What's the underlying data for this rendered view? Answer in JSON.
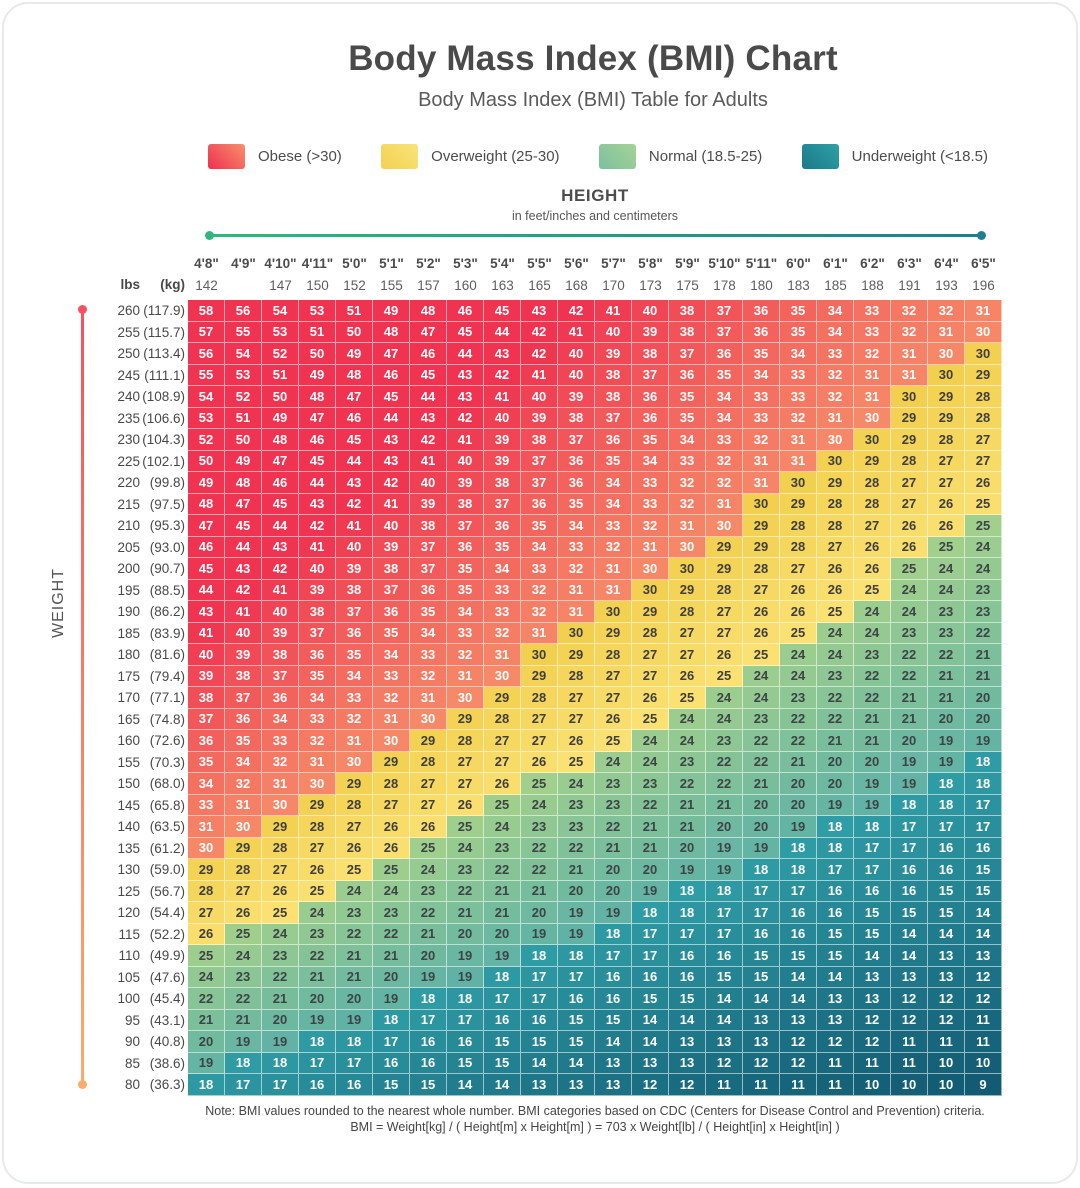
{
  "title": "Body Mass Index (BMI) Chart",
  "subtitle": "Body Mass Index (BMI) Table for Adults",
  "legend": {
    "items": [
      {
        "label": "Obese (>30)",
        "swatch_from": "#ee2f50",
        "swatch_to": "#f8906c"
      },
      {
        "label": "Overweight (25-30)",
        "swatch_from": "#f3d052",
        "swatch_to": "#fae47a"
      },
      {
        "label": "Normal (18.5-25)",
        "swatch_from": "#7dbfa0",
        "swatch_to": "#a6d396"
      },
      {
        "label": "Underweight (<18.5)",
        "swatch_from": "#1a7a89",
        "swatch_to": "#2fa0a6"
      }
    ]
  },
  "height_axis": {
    "title": "HEIGHT",
    "subtitle": "in feet/inches and centimeters",
    "line_from": "#2db97d",
    "line_to": "#1e7f8e"
  },
  "weight_axis": {
    "title": "WEIGHT",
    "line_from": "#f8505f",
    "line_to": "#f9ac6e"
  },
  "units": {
    "pounds": "lbs",
    "kilograms": "(kg)"
  },
  "footer": {
    "line1": "Note: BMI values rounded to the nearest whole number. BMI categories based on CDC (Centers for Disease Control and Prevention) criteria.",
    "line2": "BMI = Weight[kg] / ( Height[m] x Height[m] ) = 703 x Weight[lb] / ( Height[in] x Height[in] )"
  },
  "chart_data": {
    "type": "heatmap",
    "title": "Body Mass Index (BMI) Chart",
    "x_axis": {
      "label": "HEIGHT",
      "columns_feet_inches": [
        "4'8\"",
        "4'9\"",
        "4'10\"",
        "4'11\"",
        "5'0\"",
        "5'1\"",
        "5'2\"",
        "5'3\"",
        "5'4\"",
        "5'5\"",
        "5'6\"",
        "5'7\"",
        "5'8\"",
        "5'9\"",
        "5'10\"",
        "5'11\"",
        "6'0\"",
        "6'1\"",
        "6'2\"",
        "6'3\"",
        "6'4\"",
        "6'5\""
      ],
      "columns_cm": [
        "142",
        "",
        "147",
        "150",
        "152",
        "155",
        "157",
        "160",
        "163",
        "165",
        "168",
        "170",
        "173",
        "175",
        "178",
        "180",
        "183",
        "185",
        "188",
        "191",
        "193",
        "196"
      ],
      "heights_inches": [
        56,
        57,
        58,
        59,
        60,
        61,
        62,
        63,
        64,
        65,
        66,
        67,
        68,
        69,
        70,
        71,
        72,
        73,
        74,
        75,
        76,
        77
      ]
    },
    "y_axis": {
      "label": "WEIGHT",
      "rows_lbs": [
        260,
        255,
        250,
        245,
        240,
        235,
        230,
        225,
        220,
        215,
        210,
        205,
        200,
        195,
        190,
        185,
        180,
        175,
        170,
        165,
        160,
        155,
        150,
        145,
        140,
        135,
        130,
        125,
        120,
        115,
        110,
        105,
        100,
        95,
        90,
        85,
        80
      ],
      "rows_kg": [
        "(117.9)",
        "(115.7)",
        "(113.4)",
        "(111.1)",
        "(108.9)",
        "(106.6)",
        "(104.3)",
        "(102.1)",
        "(99.8)",
        "(97.5)",
        "(95.3)",
        "(93.0)",
        "(90.7)",
        "(88.5)",
        "(86.2)",
        "(83.9)",
        "(81.6)",
        "(79.4)",
        "(77.1)",
        "(74.8)",
        "(72.6)",
        "(70.3)",
        "(68.0)",
        "(65.8)",
        "(63.5)",
        "(61.2)",
        "(59.0)",
        "(56.7)",
        "(54.4)",
        "(52.2)",
        "(49.9)",
        "(47.6)",
        "(45.4)",
        "(43.1)",
        "(40.8)",
        "(38.6)",
        "(36.3)"
      ]
    },
    "bmi_values": [
      [
        58,
        56,
        54,
        53,
        51,
        49,
        48,
        46,
        45,
        43,
        42,
        41,
        40,
        38,
        37,
        36,
        35,
        34,
        33,
        32,
        32,
        31
      ],
      [
        57,
        55,
        53,
        51,
        50,
        48,
        47,
        45,
        44,
        42,
        41,
        40,
        39,
        38,
        37,
        36,
        35,
        34,
        33,
        32,
        31,
        30
      ],
      [
        56,
        54,
        52,
        50,
        49,
        47,
        46,
        44,
        43,
        42,
        40,
        39,
        38,
        37,
        36,
        35,
        34,
        33,
        32,
        31,
        30,
        30
      ],
      [
        55,
        53,
        51,
        49,
        48,
        46,
        45,
        43,
        42,
        41,
        40,
        38,
        37,
        36,
        35,
        34,
        33,
        32,
        31,
        31,
        30,
        29
      ],
      [
        54,
        52,
        50,
        48,
        47,
        45,
        44,
        43,
        41,
        40,
        39,
        38,
        36,
        35,
        34,
        33,
        33,
        32,
        31,
        30,
        29,
        28
      ],
      [
        53,
        51,
        49,
        47,
        46,
        44,
        43,
        42,
        40,
        39,
        38,
        37,
        36,
        35,
        34,
        33,
        32,
        31,
        30,
        29,
        29,
        28
      ],
      [
        52,
        50,
        48,
        46,
        45,
        43,
        42,
        41,
        39,
        38,
        37,
        36,
        35,
        34,
        33,
        32,
        31,
        30,
        30,
        29,
        28,
        27
      ],
      [
        50,
        49,
        47,
        45,
        44,
        43,
        41,
        40,
        39,
        37,
        36,
        35,
        34,
        33,
        32,
        31,
        31,
        30,
        29,
        28,
        27,
        27
      ],
      [
        49,
        48,
        46,
        44,
        43,
        42,
        40,
        39,
        38,
        37,
        36,
        34,
        33,
        32,
        32,
        31,
        30,
        29,
        28,
        27,
        27,
        26
      ],
      [
        48,
        47,
        45,
        43,
        42,
        41,
        39,
        38,
        37,
        36,
        35,
        34,
        33,
        32,
        31,
        30,
        29,
        28,
        28,
        27,
        26,
        25
      ],
      [
        47,
        45,
        44,
        42,
        41,
        40,
        38,
        37,
        36,
        35,
        34,
        33,
        32,
        31,
        30,
        29,
        28,
        28,
        27,
        26,
        26,
        25
      ],
      [
        46,
        44,
        43,
        41,
        40,
        39,
        37,
        36,
        35,
        34,
        33,
        32,
        31,
        30,
        29,
        29,
        28,
        27,
        26,
        26,
        25,
        24
      ],
      [
        45,
        43,
        42,
        40,
        39,
        38,
        37,
        35,
        34,
        33,
        32,
        31,
        30,
        30,
        29,
        28,
        27,
        26,
        26,
        25,
        24,
        24
      ],
      [
        44,
        42,
        41,
        39,
        38,
        37,
        36,
        35,
        33,
        32,
        31,
        31,
        30,
        29,
        28,
        27,
        26,
        26,
        25,
        24,
        24,
        23
      ],
      [
        43,
        41,
        40,
        38,
        37,
        36,
        35,
        34,
        33,
        32,
        31,
        30,
        29,
        28,
        27,
        26,
        26,
        25,
        24,
        24,
        23,
        23
      ],
      [
        41,
        40,
        39,
        37,
        36,
        35,
        34,
        33,
        32,
        31,
        30,
        29,
        28,
        27,
        27,
        26,
        25,
        24,
        24,
        23,
        23,
        22
      ],
      [
        40,
        39,
        38,
        36,
        35,
        34,
        33,
        32,
        31,
        30,
        29,
        28,
        27,
        27,
        26,
        25,
        24,
        24,
        23,
        22,
        22,
        21
      ],
      [
        39,
        38,
        37,
        35,
        34,
        33,
        32,
        31,
        30,
        29,
        28,
        27,
        27,
        26,
        25,
        24,
        24,
        23,
        22,
        22,
        21,
        21
      ],
      [
        38,
        37,
        36,
        34,
        33,
        32,
        31,
        30,
        29,
        28,
        27,
        27,
        26,
        25,
        24,
        24,
        23,
        22,
        22,
        21,
        21,
        20
      ],
      [
        37,
        36,
        34,
        33,
        32,
        31,
        30,
        29,
        28,
        27,
        27,
        26,
        25,
        24,
        24,
        23,
        22,
        22,
        21,
        21,
        20,
        20
      ],
      [
        36,
        35,
        33,
        32,
        31,
        30,
        29,
        28,
        27,
        27,
        26,
        25,
        24,
        24,
        23,
        22,
        22,
        21,
        21,
        20,
        19,
        19
      ],
      [
        35,
        34,
        32,
        31,
        30,
        29,
        28,
        27,
        27,
        26,
        25,
        24,
        24,
        23,
        22,
        22,
        21,
        20,
        20,
        19,
        19,
        18
      ],
      [
        34,
        32,
        31,
        30,
        29,
        28,
        27,
        27,
        26,
        25,
        24,
        23,
        23,
        22,
        22,
        21,
        20,
        20,
        19,
        19,
        18,
        18
      ],
      [
        33,
        31,
        30,
        29,
        28,
        27,
        27,
        26,
        25,
        24,
        23,
        23,
        22,
        21,
        21,
        20,
        20,
        19,
        19,
        18,
        18,
        17
      ],
      [
        31,
        30,
        29,
        28,
        27,
        26,
        26,
        25,
        24,
        23,
        23,
        22,
        21,
        21,
        20,
        20,
        19,
        18,
        18,
        17,
        17,
        17
      ],
      [
        30,
        29,
        28,
        27,
        26,
        26,
        25,
        24,
        23,
        22,
        22,
        21,
        21,
        20,
        19,
        19,
        18,
        18,
        17,
        17,
        16,
        16
      ],
      [
        29,
        28,
        27,
        26,
        25,
        25,
        24,
        23,
        22,
        22,
        21,
        20,
        20,
        19,
        19,
        18,
        18,
        17,
        17,
        16,
        16,
        15
      ],
      [
        28,
        27,
        26,
        25,
        24,
        24,
        23,
        22,
        21,
        21,
        20,
        20,
        19,
        18,
        18,
        17,
        17,
        16,
        16,
        16,
        15,
        15
      ],
      [
        27,
        26,
        25,
        24,
        23,
        23,
        22,
        21,
        21,
        20,
        19,
        19,
        18,
        18,
        17,
        17,
        16,
        16,
        15,
        15,
        15,
        14
      ],
      [
        26,
        25,
        24,
        23,
        22,
        22,
        21,
        20,
        20,
        19,
        19,
        18,
        17,
        17,
        17,
        16,
        16,
        15,
        15,
        14,
        14,
        14
      ],
      [
        25,
        24,
        23,
        22,
        21,
        21,
        20,
        19,
        19,
        18,
        18,
        17,
        17,
        16,
        16,
        15,
        15,
        15,
        14,
        14,
        13,
        13
      ],
      [
        24,
        23,
        22,
        21,
        21,
        20,
        19,
        19,
        18,
        17,
        17,
        16,
        16,
        16,
        15,
        15,
        14,
        14,
        13,
        13,
        13,
        12
      ],
      [
        22,
        22,
        21,
        20,
        20,
        19,
        18,
        18,
        17,
        17,
        16,
        16,
        15,
        15,
        14,
        14,
        14,
        13,
        13,
        12,
        12,
        12
      ],
      [
        21,
        21,
        20,
        19,
        19,
        18,
        17,
        17,
        16,
        16,
        15,
        15,
        14,
        14,
        14,
        13,
        13,
        13,
        12,
        12,
        12,
        11
      ],
      [
        20,
        19,
        19,
        18,
        18,
        17,
        16,
        16,
        15,
        15,
        15,
        14,
        14,
        13,
        13,
        13,
        12,
        12,
        12,
        11,
        11,
        11
      ],
      [
        19,
        18,
        18,
        17,
        17,
        16,
        16,
        15,
        15,
        14,
        14,
        13,
        13,
        13,
        12,
        12,
        12,
        11,
        11,
        11,
        10,
        10
      ],
      [
        18,
        17,
        17,
        16,
        16,
        15,
        15,
        14,
        14,
        13,
        13,
        13,
        12,
        12,
        11,
        11,
        11,
        11,
        10,
        10,
        10,
        9
      ]
    ],
    "categories": [
      {
        "name": "Obese",
        "range": ">30"
      },
      {
        "name": "Overweight",
        "range": "25-30"
      },
      {
        "name": "Normal",
        "range": "18.5-25"
      },
      {
        "name": "Underweight",
        "range": "<18.5"
      }
    ],
    "category_colors": {
      "obese": {
        "from": "#f68a68",
        "to": "#ef3350",
        "span": 12,
        "text": "#ffffff"
      },
      "overweight": {
        "from": "#fae173",
        "to": "#f2cf4e",
        "span": 5,
        "text": "#3f3f3f"
      },
      "normal": {
        "from": "#a1d08c",
        "to": "#5fb2a6",
        "span": 6.5,
        "text": "#3e4446"
      },
      "underweight": {
        "from": "#2f9da6",
        "to": "#125b73",
        "span": 9,
        "text": "#ffffff"
      }
    },
    "formula": "BMI = 703 x Weight[lb] / ( Height[in] x Height[in] )"
  }
}
